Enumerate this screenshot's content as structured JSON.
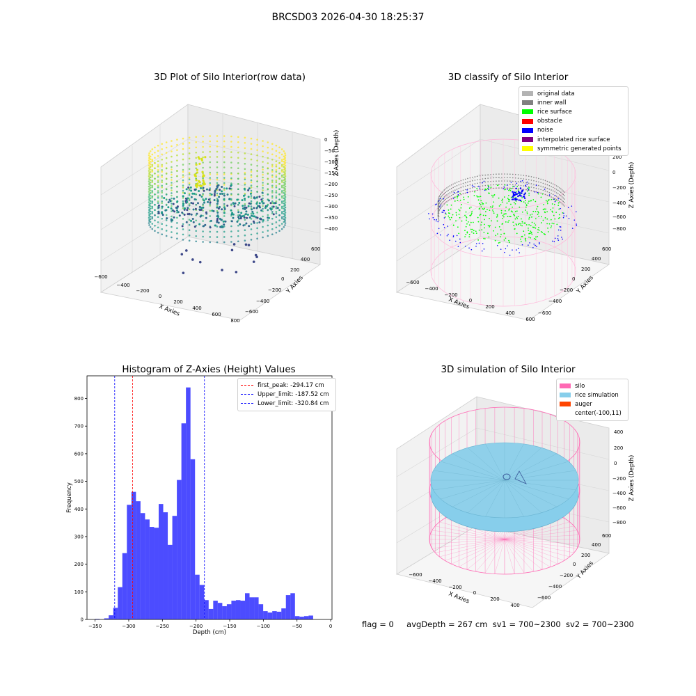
{
  "suptitle": "BRCSD03 2026-04-30 18:25:37",
  "plot_raw": {
    "title": "3D Plot of Silo Interior(row data)",
    "x_label": "X Axies",
    "y_label": "Y Axies",
    "z_label": "Z Axies (Depth)",
    "x_ticks": [
      "−600",
      "−400",
      "−200",
      "0",
      "200",
      "400",
      "600",
      "800"
    ],
    "y_ticks": [
      "−600",
      "−400",
      "−200",
      "0",
      "200",
      "400",
      "600"
    ],
    "z_ticks": [
      "0",
      "−50",
      "−100",
      "−150",
      "−200",
      "−250",
      "−300",
      "−350",
      "−400"
    ]
  },
  "plot_classify": {
    "title": "3D classify of Silo Interior",
    "x_label": "X Axies",
    "y_label": "Y Axies",
    "z_label": "Z Axies (Depth)",
    "x_ticks": [
      "−600",
      "−400",
      "−200",
      "0",
      "200",
      "400",
      "600"
    ],
    "y_ticks": [
      "−600",
      "−400",
      "−200",
      "0",
      "200",
      "400",
      "600"
    ],
    "z_ticks": [
      "200",
      "0",
      "−200",
      "−400",
      "−600",
      "−800"
    ],
    "z_top_partial": "00",
    "legend": [
      {
        "label": "original data",
        "color": "#b3b3b3"
      },
      {
        "label": "inner wall",
        "color": "#808080"
      },
      {
        "label": "rice surface",
        "color": "#00ff00"
      },
      {
        "label": "obstacle",
        "color": "#ff0000"
      },
      {
        "label": "noise",
        "color": "#0000ff"
      },
      {
        "label": "interpolated rice surface",
        "color": "#800080"
      },
      {
        "label": "symmetric generated points",
        "color": "#ffff00"
      }
    ]
  },
  "plot_sim": {
    "title": "3D simulation of Silo Interior",
    "x_label": "X Axies",
    "y_label": "Y Axies",
    "z_label": "Z Axies (Depth)",
    "x_ticks": [
      "−600",
      "−400",
      "−200",
      "0",
      "200",
      "400"
    ],
    "y_ticks": [
      "−600",
      "−400",
      "−200",
      "0",
      "200",
      "400",
      "600"
    ],
    "z_ticks": [
      "400",
      "200",
      "0",
      "−200",
      "−400",
      "−600",
      "−800"
    ],
    "legend": [
      {
        "label": "silo",
        "color": "#ff69b4"
      },
      {
        "label": "rice simulation",
        "color": "#87ceeb"
      },
      {
        "label": "auger",
        "color": "#ff4500"
      },
      {
        "label": "center(-100,11)",
        "color": ""
      }
    ]
  },
  "status": {
    "flag": "flag = 0",
    "avg_depth": "avgDepth = 267 cm",
    "sv1": "sv1 = 700~2300",
    "sv2": "sv2 = 700~2300"
  },
  "chart_data": {
    "type": "bar",
    "title": "Histogram of Z-Axies (Height) Values",
    "xlabel": "Depth (cm)",
    "ylabel": "Frequency",
    "xlim": [
      -362,
      2
    ],
    "ylim": [
      0,
      882
    ],
    "x_ticks": [
      -350,
      -300,
      -250,
      -200,
      -150,
      -100,
      -50,
      0
    ],
    "y_ticks": [
      0,
      100,
      200,
      300,
      400,
      500,
      600,
      700,
      800
    ],
    "bin_start": -350,
    "bin_width": 6.75,
    "color": "#0000ff",
    "values": [
      2,
      0,
      4,
      15,
      42,
      117,
      240,
      415,
      462,
      428,
      385,
      362,
      335,
      332,
      418,
      388,
      270,
      375,
      505,
      710,
      840,
      580,
      162,
      125,
      70,
      38,
      68,
      60,
      48,
      55,
      68,
      70,
      68,
      95,
      80,
      80,
      55,
      30,
      25,
      30,
      28,
      40,
      88,
      95,
      12,
      10,
      12,
      14
    ],
    "vlines": [
      {
        "x": -294.17,
        "label": "first_peak: -294.17 cm",
        "color": "#ff0000"
      },
      {
        "x": -187.52,
        "label": "Upper_limit: -187.52 cm",
        "color": "#0000ff"
      },
      {
        "x": -320.84,
        "label": "Lower_limit: -320.84 cm",
        "color": "#0000ff"
      }
    ]
  }
}
